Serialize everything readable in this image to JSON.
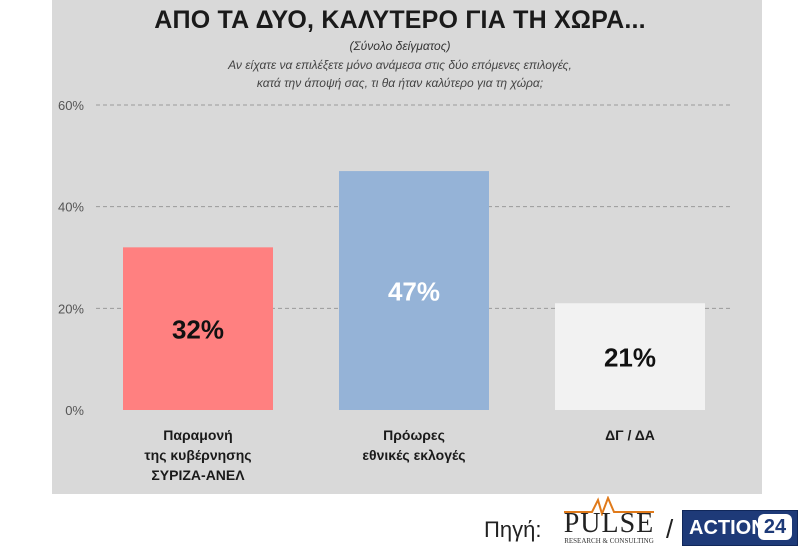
{
  "header": {
    "title": "ΑΠΟ ΤΑ ΔΥΟ, ΚΑΛΥΤΕΡΟ ΓΙΑ ΤΗ ΧΩΡΑ...",
    "subtitle": "(Σύνολο δείγματος)",
    "question_line1": "Αν είχατε να επιλέξετε μόνο ανάμεσα στις δύο επόμενες επιλογές,",
    "question_line2": "κατά την άποψή σας, τι θα ήταν καλύτερο για τη χώρα;"
  },
  "chart_data": {
    "type": "bar",
    "title": "ΑΠΟ ΤΑ ΔΥΟ, ΚΑΛΥΤΕΡΟ ΓΙΑ ΤΗ ΧΩΡΑ...",
    "categories": [
      [
        "Παραμονή",
        "της κυβέρνησης",
        "ΣΥΡΙΖΑ-ΑΝΕΛ"
      ],
      [
        "Πρόωρες",
        "εθνικές εκλογές"
      ],
      [
        "ΔΓ / ΔΑ"
      ]
    ],
    "values": [
      32,
      47,
      21
    ],
    "data_labels": [
      "32%",
      "47%",
      "21%"
    ],
    "colors": [
      "#ff8080",
      "#95b3d7",
      "#f2f2f2"
    ],
    "label_colors": [
      "#111111",
      "#ffffff",
      "#111111"
    ],
    "ylim": [
      0,
      60
    ],
    "yticks": [
      0,
      20,
      40,
      60
    ],
    "ytick_labels": [
      "0%",
      "20%",
      "40%",
      "60%"
    ],
    "grid": true,
    "legend": false
  },
  "footer": {
    "source_label": "Πηγή:",
    "separator": "/",
    "pulse_logo_text": "PULSE",
    "pulse_logo_subtext": "RESEARCH & CONSULTING",
    "action_logo_text": "ACTION",
    "action_logo_number": "24"
  }
}
